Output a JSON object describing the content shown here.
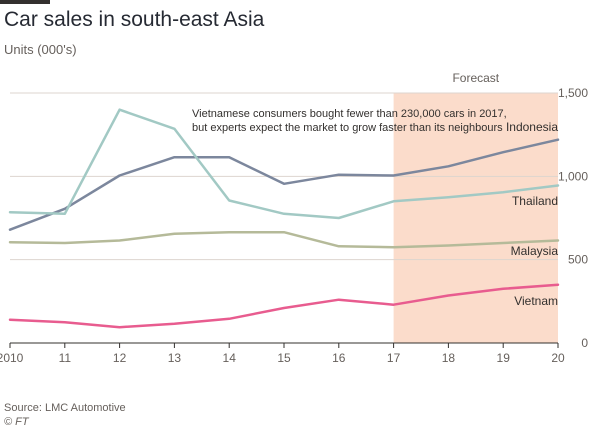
{
  "header": {
    "title": "Car sales in south-east Asia",
    "subtitle": "Units (000's)"
  },
  "footer": {
    "source": "Source: LMC Automotive",
    "copyright": "© FT"
  },
  "chart_data": {
    "type": "line",
    "title": "Car sales in south-east Asia",
    "ylabel": "Units (000's)",
    "xlabel": "",
    "x": [
      2010,
      2011,
      2012,
      2013,
      2014,
      2015,
      2016,
      2017,
      2018,
      2019,
      2020
    ],
    "x_tick_labels": [
      "2010",
      "11",
      "12",
      "13",
      "14",
      "15",
      "16",
      "17",
      "18",
      "19",
      "20"
    ],
    "ylim": [
      0,
      1500
    ],
    "y_ticks": [
      0,
      500,
      1000,
      1500
    ],
    "y_tick_labels": [
      "0",
      "500",
      "1,000",
      "1,500"
    ],
    "forecast": {
      "label": "Forecast",
      "start": 2017,
      "end": 2020,
      "color": "#fbdccb"
    },
    "annotation": {
      "lines": [
        "Vietnamese consumers bought fewer than 230,000 cars in 2017,",
        "but experts expect the market to grow faster than its neighbours"
      ]
    },
    "series": [
      {
        "name": "Indonesia",
        "color": "#7c879d",
        "values": [
          680,
          805,
          1005,
          1115,
          1115,
          955,
          1010,
          1005,
          1060,
          1145,
          1220
        ]
      },
      {
        "name": "Thailand",
        "color": "#a2c9c4",
        "values": [
          785,
          775,
          1400,
          1285,
          855,
          775,
          750,
          850,
          875,
          905,
          945
        ]
      },
      {
        "name": "Malaysia",
        "color": "#b5ba99",
        "values": [
          605,
          600,
          615,
          655,
          665,
          665,
          580,
          575,
          585,
          600,
          615
        ]
      },
      {
        "name": "Vietnam",
        "color": "#e85c8f",
        "values": [
          140,
          125,
          95,
          115,
          145,
          210,
          260,
          230,
          285,
          325,
          350
        ]
      }
    ]
  }
}
